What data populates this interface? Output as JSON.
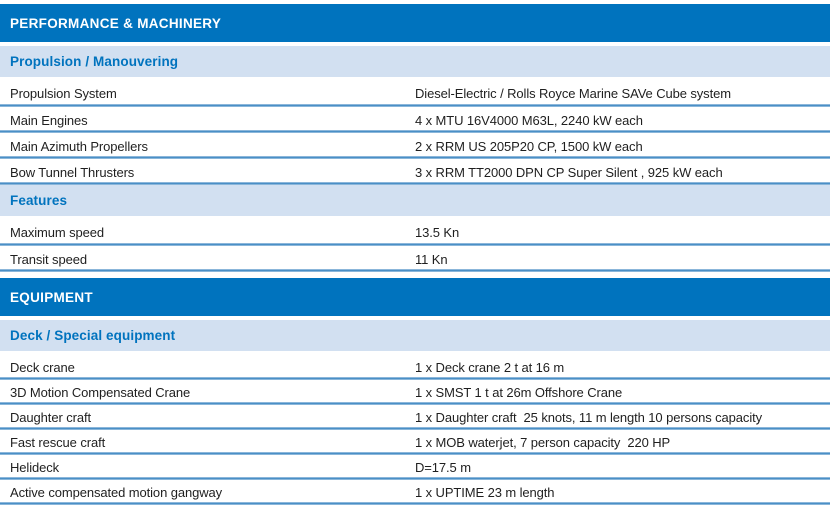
{
  "colors": {
    "section_header_bg": "#0073BE",
    "section_header_text": "#FFFFFF",
    "subsection_bg": "#D2E0F1",
    "subsection_text": "#0073BE",
    "row_divider": "#4A8FC6",
    "body_text": "#1F1F1F"
  },
  "sections": [
    {
      "title": "PERFORMANCE & MACHINERY",
      "subsections": [
        {
          "title": "Propulsion / Manouvering",
          "rows": [
            {
              "label": "Propulsion System",
              "value": "Diesel-Electric / Rolls Royce Marine SAVe Cube system"
            },
            {
              "label": "Main Engines",
              "value": "4 x MTU 16V4000 M63L, 2240 kW each"
            },
            {
              "label": "Main Azimuth Propellers",
              "value": "2 x RRM US 205P20 CP, 1500 kW each"
            },
            {
              "label": "Bow Tunnel Thrusters",
              "value": "3 x RRM TT2000 DPN CP Super Silent , 925 kW each"
            }
          ]
        },
        {
          "title": "Features",
          "rows": [
            {
              "label": "Maximum speed",
              "value": "13.5 Kn"
            },
            {
              "label": "Transit speed",
              "value": "11 Kn"
            }
          ]
        }
      ]
    },
    {
      "title": "EQUIPMENT",
      "subsections": [
        {
          "title": "Deck / Special equipment",
          "rows": [
            {
              "label": "Deck crane",
              "value": "1 x Deck crane 2 t at 16 m"
            },
            {
              "label": "3D Motion Compensated Crane",
              "value": "1 x SMST 1 t at 26m Offshore Crane"
            },
            {
              "label": "Daughter craft",
              "value": "1 x Daughter craft  25 knots, 11 m length 10 persons capacity"
            },
            {
              "label": "Fast rescue craft",
              "value": "1 x MOB waterjet, 7 person capacity  220 HP"
            },
            {
              "label": "Helideck",
              "value": "D=17.5 m"
            },
            {
              "label": "Active compensated motion gangway",
              "value": "1 x UPTIME 23 m length"
            }
          ]
        }
      ]
    }
  ]
}
